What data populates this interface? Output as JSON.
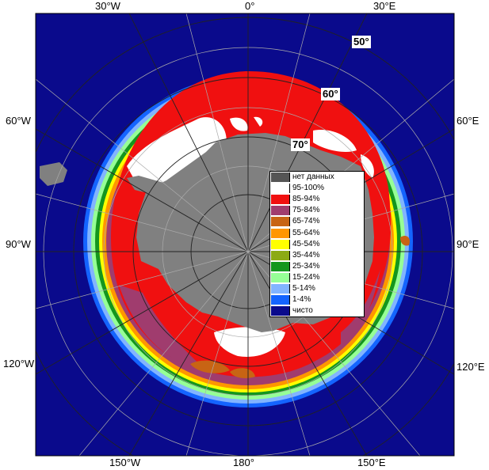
{
  "graticule": {
    "meridians": [
      "30°W",
      "0°",
      "30°E",
      "60°W",
      "60°E",
      "90°W",
      "90°E",
      "120°W",
      "120°E",
      "150°W",
      "180°",
      "150°E"
    ],
    "parallels": [
      "50°",
      "60°",
      "70°"
    ]
  },
  "legend": {
    "items": [
      {
        "label": "нет данных",
        "color": "#555555"
      },
      {
        "label": "95-100%",
        "color": "#ffffff"
      },
      {
        "label": "85-94%",
        "color": "#f01010"
      },
      {
        "label": "75-84%",
        "color": "#a03c6e"
      },
      {
        "label": "65-74%",
        "color": "#c86414"
      },
      {
        "label": "55-64%",
        "color": "#ff9600"
      },
      {
        "label": "45-54%",
        "color": "#ffff00"
      },
      {
        "label": "35-44%",
        "color": "#8caa14"
      },
      {
        "label": "25-34%",
        "color": "#14961e"
      },
      {
        "label": "15-24%",
        "color": "#96ff96"
      },
      {
        "label": "5-14%",
        "color": "#82b4ff"
      },
      {
        "label": "1-4%",
        "color": "#1464ff"
      },
      {
        "label": "чисто",
        "color": "#0a0a8c"
      }
    ]
  },
  "colors": {
    "ocean": "#0a0a8c",
    "land": "#808080",
    "frame": "#000000"
  }
}
